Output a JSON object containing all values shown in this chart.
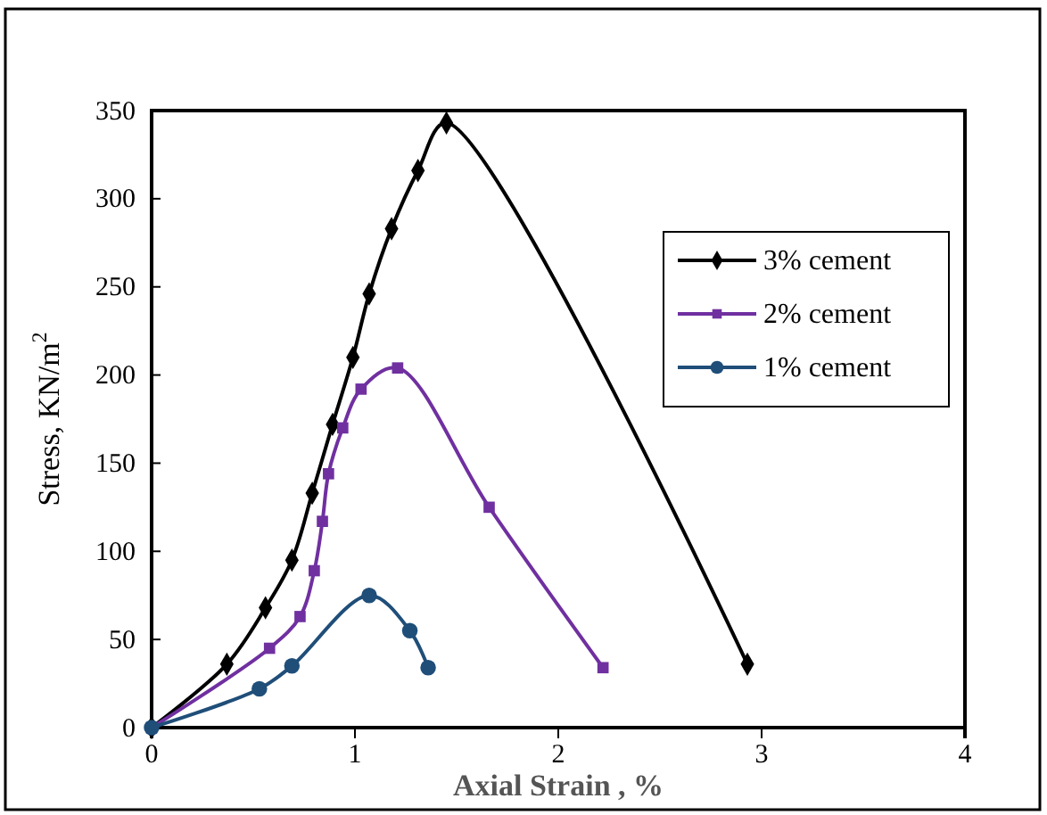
{
  "chart_data": {
    "type": "line",
    "xlabel": "Axial Strain , %",
    "ylabel": "Stress, KN/m$^{2}$",
    "xlim": [
      0,
      4
    ],
    "xticks": [
      0,
      1,
      2,
      3,
      4
    ],
    "ylim": [
      0,
      350
    ],
    "yticks": [
      0,
      50,
      100,
      150,
      200,
      250,
      300,
      350
    ],
    "grid": false,
    "legend": "top right",
    "line_style": "solid",
    "series": [
      {
        "name": "3% cement",
        "color": "#000000",
        "marker": "diamond",
        "x": [
          0,
          0.37,
          0.56,
          0.69,
          0.79,
          0.89,
          0.99,
          1.07,
          1.18,
          1.31,
          1.45,
          2.93
        ],
        "values": [
          0,
          36,
          68,
          95,
          133,
          172,
          210,
          246,
          283,
          316,
          343,
          36
        ]
      },
      {
        "name": "2% cement",
        "color": "#7030a0",
        "marker": "square",
        "x": [
          0,
          0.58,
          0.73,
          0.8,
          0.84,
          0.87,
          0.94,
          1.03,
          1.21,
          1.66,
          2.22
        ],
        "values": [
          0,
          45,
          63,
          89,
          117,
          144,
          170,
          192,
          204,
          125,
          34
        ]
      },
      {
        "name": "1% cement",
        "color": "#1f4e79",
        "marker": "circle",
        "x": [
          0,
          0.53,
          0.69,
          1.07,
          1.27,
          1.36
        ],
        "values": [
          0,
          22,
          35,
          75,
          55,
          34
        ]
      }
    ]
  }
}
